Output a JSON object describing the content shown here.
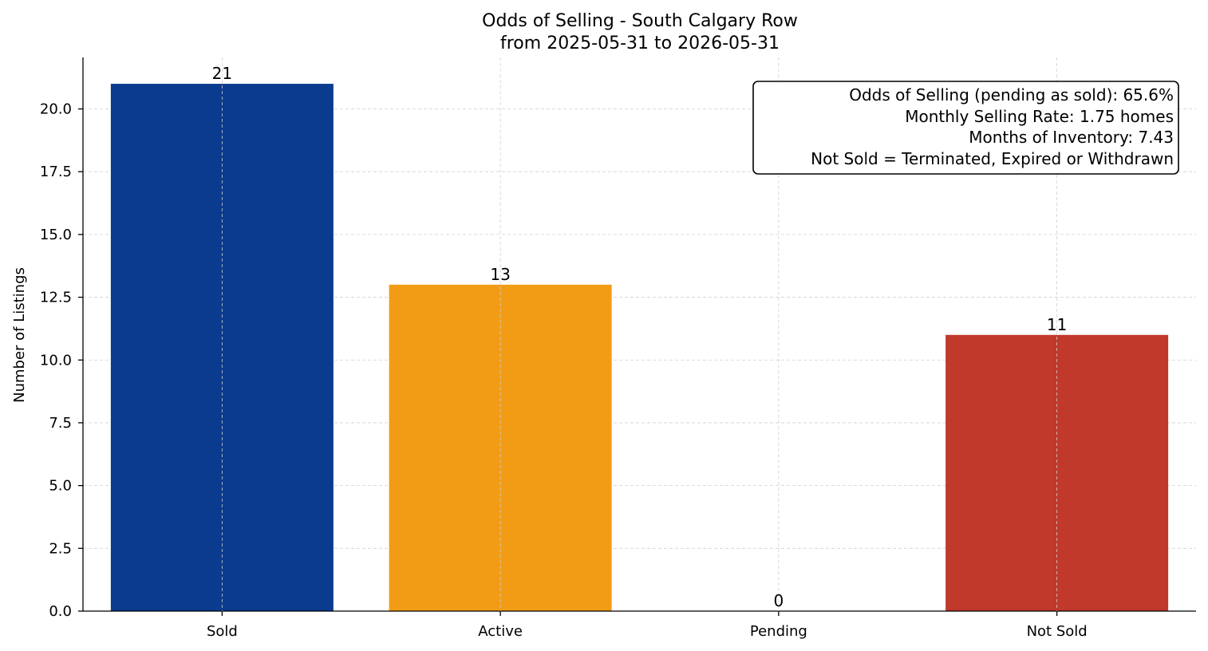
{
  "chart_data": {
    "type": "bar",
    "title": "Odds of Selling - South Calgary Row",
    "subtitle": "from 2025-05-31 to 2026-05-31",
    "xlabel": "",
    "ylabel": "Number of Listings",
    "categories": [
      "Sold",
      "Active",
      "Pending",
      "Not Sold"
    ],
    "values": [
      21,
      13,
      0,
      11
    ],
    "value_labels": [
      "21",
      "13",
      "0",
      "11"
    ],
    "colors": [
      "#0b3b8f",
      "#f29c16",
      "#1f77b4",
      "#c0392b"
    ],
    "ylim": [
      0,
      22.05
    ],
    "yticks": [
      0,
      2.5,
      5,
      7.5,
      10,
      12.5,
      15,
      17.5,
      20
    ],
    "ytick_labels": [
      "0.0",
      "2.5",
      "5.0",
      "7.5",
      "10.0",
      "12.5",
      "15.0",
      "17.5",
      "20.0"
    ],
    "grid": true,
    "legend": "none",
    "info_box": {
      "placement": "top-right",
      "lines": [
        "Odds of Selling (pending as sold): 65.6%",
        "Monthly Selling Rate: 1.75 homes",
        "Months of Inventory: 7.43",
        "Not Sold = Terminated, Expired or Withdrawn"
      ]
    }
  }
}
